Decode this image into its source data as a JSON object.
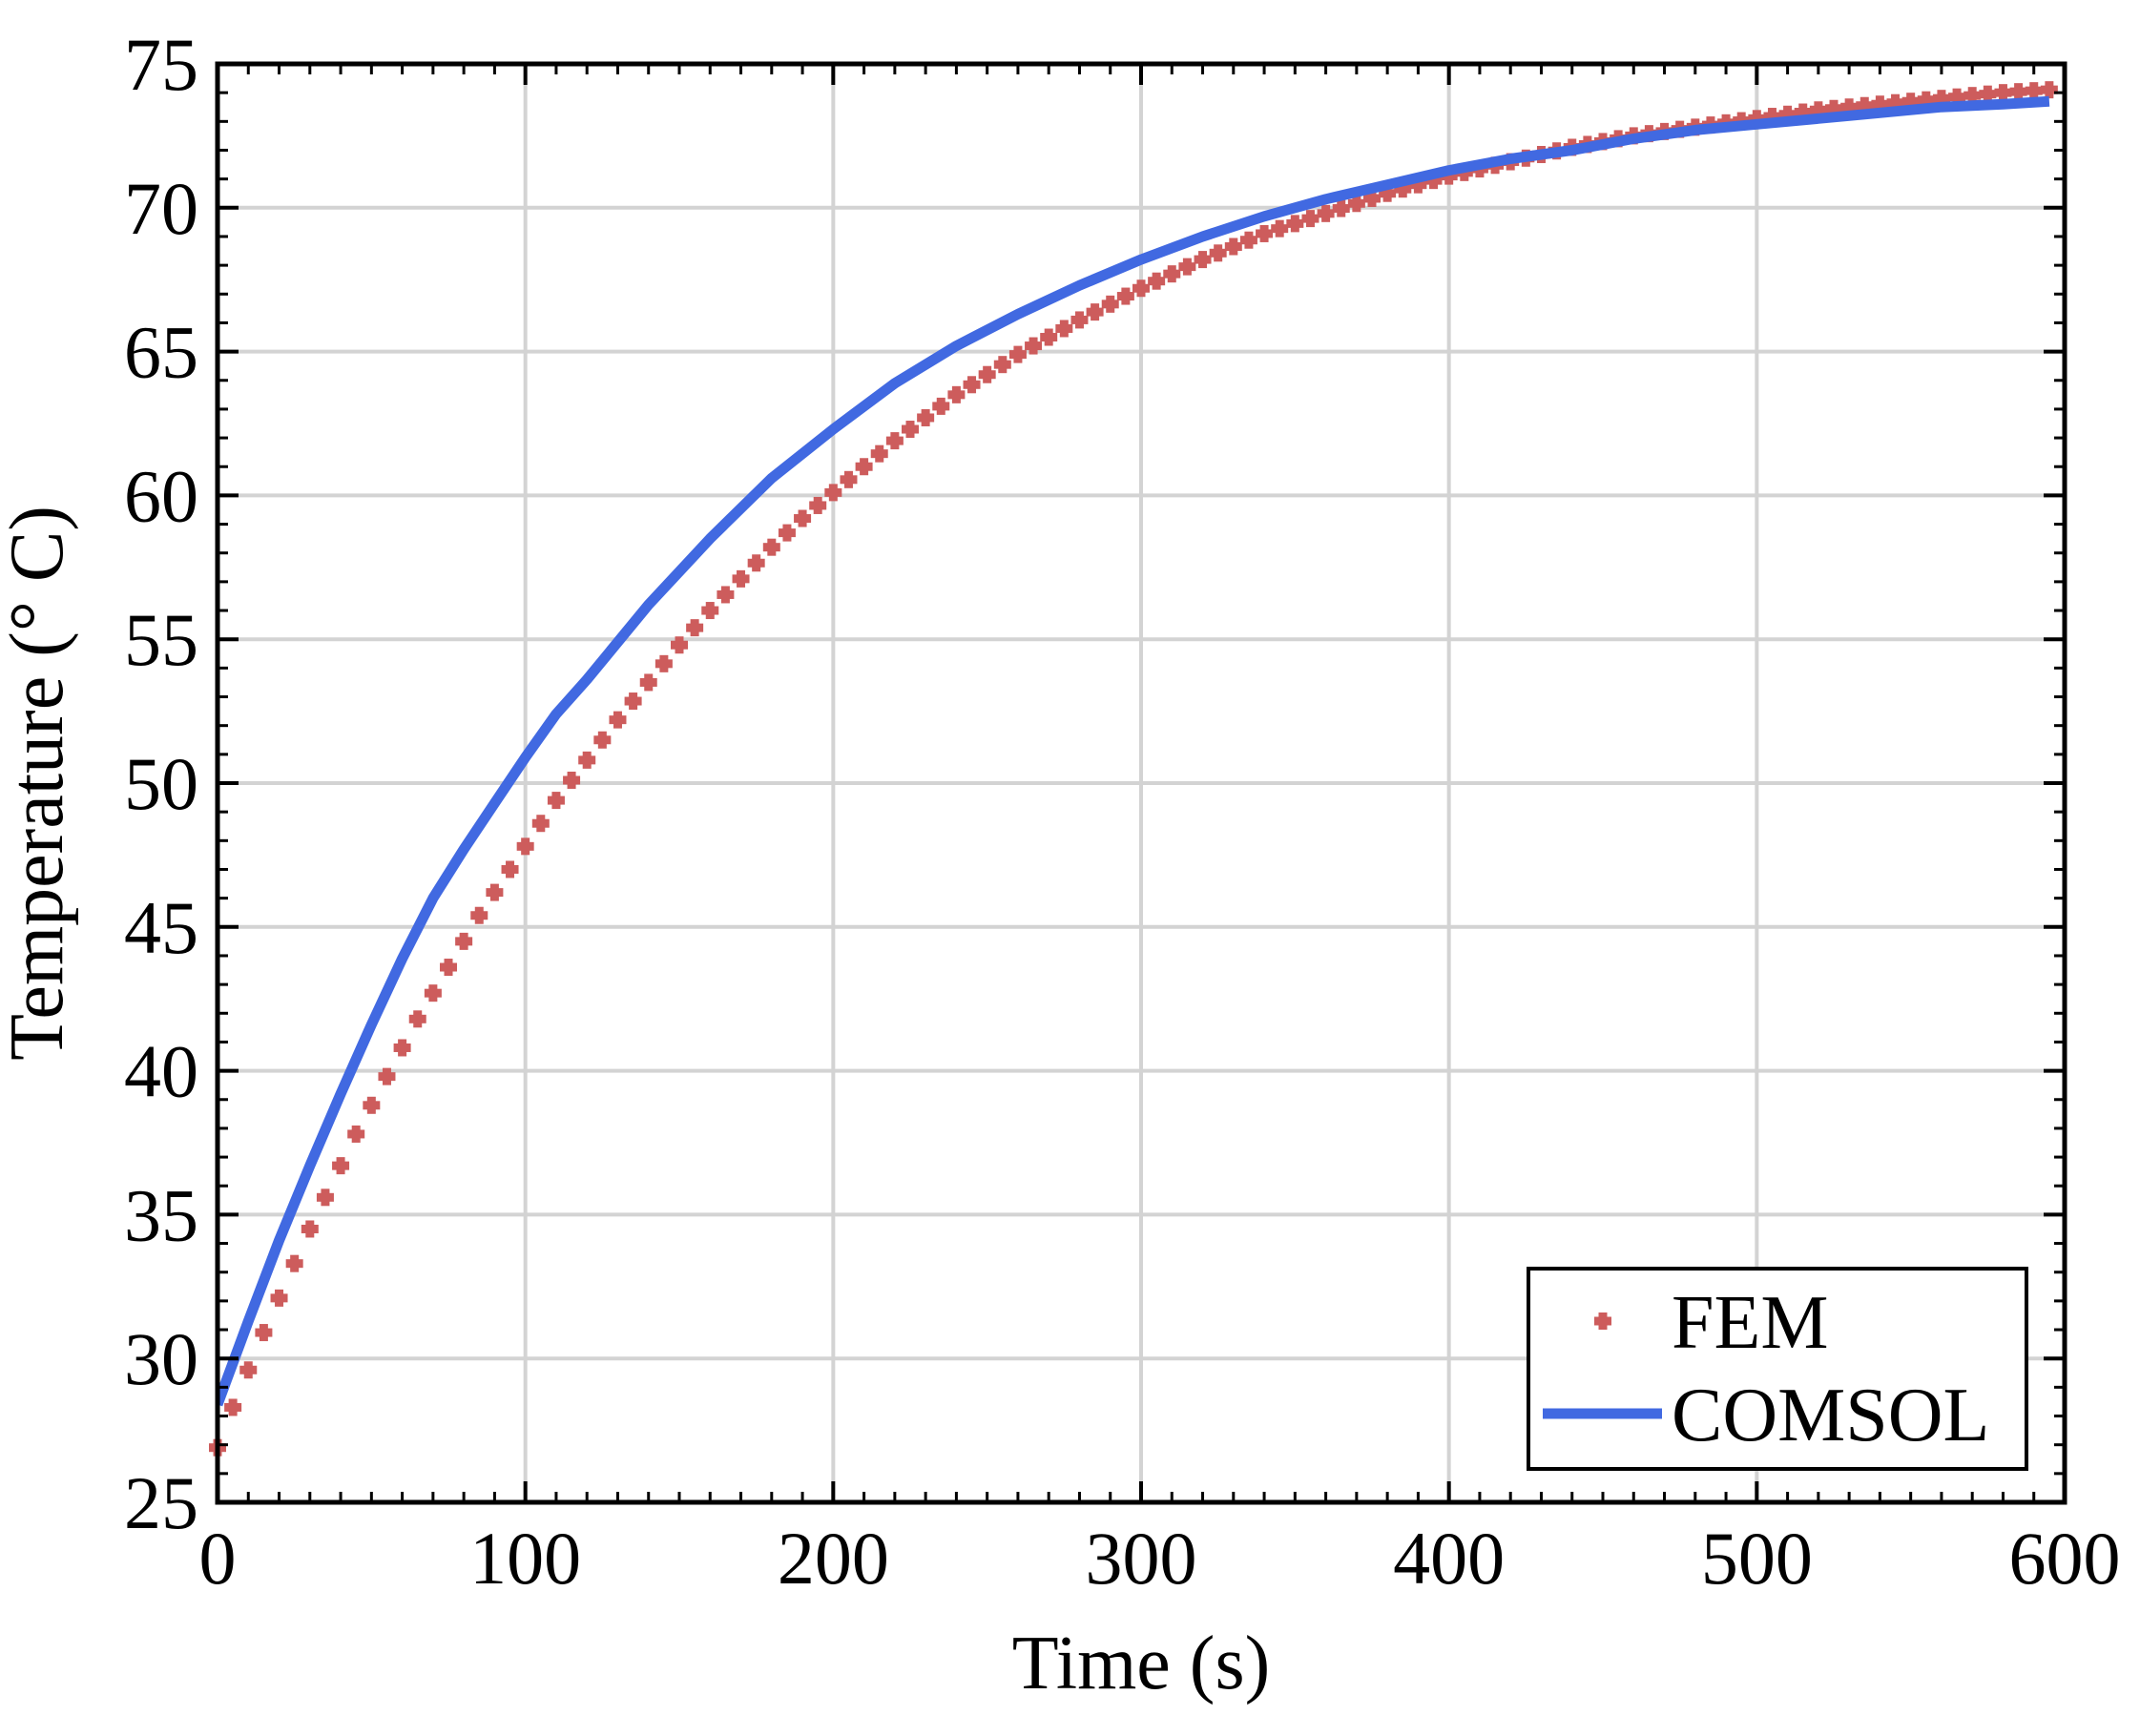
{
  "chart_data": {
    "type": "scatter",
    "title": "",
    "xlabel": "Time (s)",
    "ylabel": "Temperature (° C)",
    "xlim": [
      0,
      600
    ],
    "ylim": [
      25,
      75
    ],
    "x_ticks": [
      "0",
      "100",
      "200",
      "300",
      "400",
      "500",
      "600"
    ],
    "y_ticks": [
      "25",
      "30",
      "35",
      "40",
      "45",
      "50",
      "55",
      "60",
      "65",
      "70",
      "75"
    ],
    "grid": true,
    "legend_position": "bottom-right",
    "series": [
      {
        "name": "FEM",
        "type": "scatter",
        "marker": "plus",
        "color": "#cd5c5c",
        "x": [
          0,
          5,
          10,
          15,
          20,
          25,
          30,
          35,
          40,
          45,
          50,
          55,
          60,
          65,
          70,
          75,
          80,
          85,
          90,
          95,
          100,
          110,
          120,
          130,
          140,
          150,
          160,
          170,
          180,
          190,
          200,
          220,
          240,
          260,
          280,
          300,
          320,
          340,
          360,
          380,
          400,
          420,
          440,
          460,
          480,
          500,
          520,
          540,
          560,
          580,
          595
        ],
        "y": [
          26.9,
          28.3,
          29.6,
          30.9,
          32.1,
          33.3,
          34.5,
          35.6,
          36.7,
          37.8,
          38.8,
          39.8,
          40.8,
          41.8,
          42.7,
          43.6,
          44.5,
          45.4,
          46.2,
          47.0,
          47.8,
          49.4,
          50.8,
          52.2,
          53.5,
          54.8,
          56.0,
          57.1,
          58.2,
          59.2,
          60.1,
          61.9,
          63.5,
          64.9,
          66.1,
          67.2,
          68.2,
          69.1,
          69.8,
          70.5,
          71.1,
          71.6,
          72.1,
          72.5,
          72.8,
          73.1,
          73.4,
          73.6,
          73.8,
          74.0,
          74.1
        ]
      },
      {
        "name": "COMSOL",
        "type": "line",
        "color": "#4169e1",
        "x": [
          0,
          10,
          20,
          30,
          40,
          50,
          60,
          70,
          80,
          90,
          100,
          110,
          120,
          140,
          160,
          180,
          200,
          220,
          240,
          260,
          280,
          300,
          320,
          340,
          360,
          380,
          400,
          420,
          440,
          460,
          480,
          500,
          520,
          540,
          560,
          580,
          595
        ],
        "y": [
          28.4,
          31.3,
          34.1,
          36.7,
          39.2,
          41.6,
          43.9,
          46.0,
          47.7,
          49.3,
          50.9,
          52.4,
          53.6,
          56.2,
          58.5,
          60.6,
          62.3,
          63.9,
          65.2,
          66.3,
          67.3,
          68.2,
          69.0,
          69.7,
          70.3,
          70.8,
          71.3,
          71.7,
          72.0,
          72.4,
          72.7,
          72.9,
          73.1,
          73.3,
          73.5,
          73.6,
          73.7
        ]
      }
    ]
  }
}
